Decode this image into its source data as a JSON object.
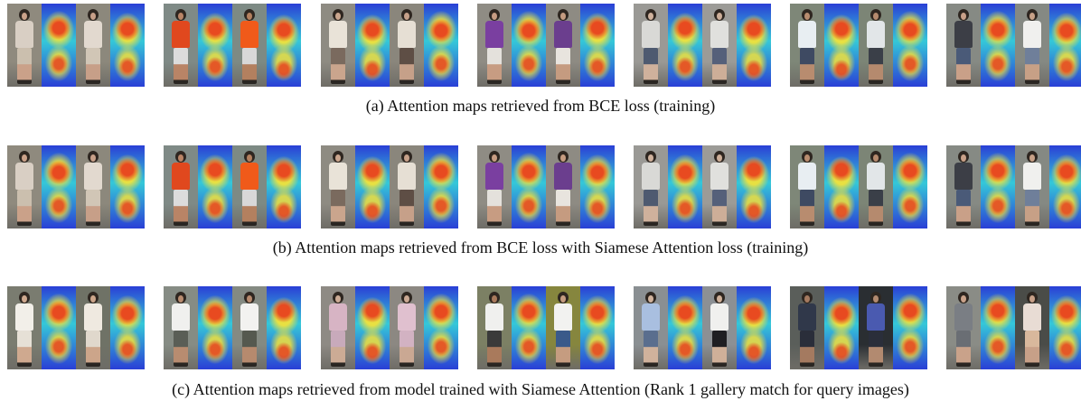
{
  "captions": {
    "a": "(a) Attention maps retrieved from BCE loss (training)",
    "b": "(b) Attention maps retrieved from BCE loss with Siamese Attention loss (training)",
    "c": "(c) Attention maps retrieved from model trained with Siamese Attention (Rank 1 gallery match for query images)"
  },
  "colors": {
    "heat_low": "#2a3fd6",
    "heat_mid": "#35c8d8",
    "heat_warm": "#f2e23a",
    "heat_hot": "#e83a1c",
    "caption_text": "#111111"
  },
  "rows": [
    {
      "id": "a",
      "groups": [
        {
          "photos": [
            {
              "bg": "#8f8a7e",
              "top": "#d9cfc4",
              "bottom": "#cbbfae",
              "skin": "#caa189"
            },
            {
              "bg": "#8c887c",
              "top": "#e2d9cf",
              "bottom": "#d1c6b6",
              "skin": "#c79f88"
            }
          ]
        },
        {
          "photos": [
            {
              "bg": "#7f8a86",
              "top": "#e0481e",
              "bottom": "#dcdcdc",
              "skin": "#b98466"
            },
            {
              "bg": "#7d8a84",
              "top": "#f05a1a",
              "bottom": "#d8d8d8",
              "skin": "#b3805f"
            }
          ]
        },
        {
          "photos": [
            {
              "bg": "#8e8b82",
              "top": "#e9e3d8",
              "bottom": "#7a6a5e",
              "skin": "#caa58d"
            },
            {
              "bg": "#8a867c",
              "top": "#e6dfd4",
              "bottom": "#5e4e45",
              "skin": "#c6a089"
            }
          ]
        },
        {
          "photos": [
            {
              "bg": "#8f8c84",
              "top": "#7a3fa0",
              "bottom": "#e4e1dc",
              "skin": "#c79c82"
            },
            {
              "bg": "#8e8b83",
              "top": "#6b3e8e",
              "bottom": "#e8e4de",
              "skin": "#c59b80"
            }
          ]
        },
        {
          "photos": [
            {
              "bg": "#9a9995",
              "top": "#d9d9d6",
              "bottom": "#4e5a70",
              "skin": "#cfb19c"
            },
            {
              "bg": "#9c9b97",
              "top": "#e0e0dd",
              "bottom": "#55607a",
              "skin": "#cdae98"
            }
          ]
        },
        {
          "photos": [
            {
              "bg": "#7e8778",
              "top": "#e8eef2",
              "bottom": "#3e4a62",
              "skin": "#b88c6f"
            },
            {
              "bg": "#7c8576",
              "top": "#e2e6e8",
              "bottom": "#3a3f48",
              "skin": "#b58a6e"
            }
          ]
        },
        {
          "photos": [
            {
              "bg": "#868a84",
              "top": "#3c3e46",
              "bottom": "#4a5a78",
              "skin": "#c9a088"
            },
            {
              "bg": "#858983",
              "top": "#f0f0ee",
              "bottom": "#6f7f9a",
              "skin": "#c7a086"
            }
          ]
        }
      ]
    },
    {
      "id": "b",
      "groups": [
        {
          "photos": [
            {
              "bg": "#8f8a7e",
              "top": "#d9cfc4",
              "bottom": "#cbbfae",
              "skin": "#caa189"
            },
            {
              "bg": "#8c887c",
              "top": "#e2d9cf",
              "bottom": "#d1c6b6",
              "skin": "#c79f88"
            }
          ]
        },
        {
          "photos": [
            {
              "bg": "#7f8a86",
              "top": "#e0481e",
              "bottom": "#dcdcdc",
              "skin": "#b98466"
            },
            {
              "bg": "#7d8a84",
              "top": "#f05a1a",
              "bottom": "#d8d8d8",
              "skin": "#b3805f"
            }
          ]
        },
        {
          "photos": [
            {
              "bg": "#8e8b82",
              "top": "#e9e3d8",
              "bottom": "#7a6a5e",
              "skin": "#caa58d"
            },
            {
              "bg": "#8a867c",
              "top": "#e6dfd4",
              "bottom": "#5e4e45",
              "skin": "#c6a089"
            }
          ]
        },
        {
          "photos": [
            {
              "bg": "#8f8c84",
              "top": "#7a3fa0",
              "bottom": "#e4e1dc",
              "skin": "#c79c82"
            },
            {
              "bg": "#8e8b83",
              "top": "#6b3e8e",
              "bottom": "#e8e4de",
              "skin": "#c59b80"
            }
          ]
        },
        {
          "photos": [
            {
              "bg": "#9a9995",
              "top": "#d9d9d6",
              "bottom": "#4e5a70",
              "skin": "#cfb19c"
            },
            {
              "bg": "#9c9b97",
              "top": "#e0e0dd",
              "bottom": "#55607a",
              "skin": "#cdae98"
            }
          ]
        },
        {
          "photos": [
            {
              "bg": "#7e8778",
              "top": "#e8eef2",
              "bottom": "#3e4a62",
              "skin": "#b88c6f"
            },
            {
              "bg": "#7c8576",
              "top": "#e2e6e8",
              "bottom": "#3a3f48",
              "skin": "#b58a6e"
            }
          ]
        },
        {
          "photos": [
            {
              "bg": "#868a84",
              "top": "#3c3e46",
              "bottom": "#4a5a78",
              "skin": "#c9a088"
            },
            {
              "bg": "#858983",
              "top": "#f0f0ee",
              "bottom": "#6f7f9a",
              "skin": "#c7a086"
            }
          ]
        }
      ]
    },
    {
      "id": "c",
      "groups": [
        {
          "photos": [
            {
              "bg": "#7a7c70",
              "top": "#f2efe9",
              "bottom": "#e6e0d6",
              "skin": "#cfa98f"
            },
            {
              "bg": "#6f7266",
              "top": "#efe9e0",
              "bottom": "#e0d8cc",
              "skin": "#cca58a"
            }
          ]
        },
        {
          "photos": [
            {
              "bg": "#868c84",
              "top": "#f0f0ee",
              "bottom": "#5a5e56",
              "skin": "#b88c70"
            },
            {
              "bg": "#848a82",
              "top": "#f2f2f0",
              "bottom": "#55594f",
              "skin": "#b68a6e"
            }
          ]
        },
        {
          "photos": [
            {
              "bg": "#8e8a84",
              "top": "#d7b4c4",
              "bottom": "#c8aabb",
              "skin": "#ccab95"
            },
            {
              "bg": "#8c8882",
              "top": "#e0c0cf",
              "bottom": "#d2b2c2",
              "skin": "#caa893"
            }
          ]
        },
        {
          "photos": [
            {
              "bg": "#7c8064",
              "top": "#f0f0ee",
              "bottom": "#3a3a3a",
              "skin": "#a97a5c"
            },
            {
              "bg": "#86863e",
              "top": "#f2f2f0",
              "bottom": "#3a5a8a",
              "skin": "#c59c80"
            }
          ]
        },
        {
          "photos": [
            {
              "bg": "#8a8f92",
              "top": "#a9bfe0",
              "bottom": "#5a6e8e",
              "skin": "#d0b29c"
            },
            {
              "bg": "#8c9094",
              "top": "#f0f0ee",
              "bottom": "#1e1e22",
              "skin": "#cfb099"
            }
          ]
        },
        {
          "photos": [
            {
              "bg": "#5a5e5a",
              "top": "#30384a",
              "bottom": "#2a2e3a",
              "skin": "#a47a60"
            },
            {
              "bg": "#2a2e32",
              "top": "#4a5ab0",
              "bottom": "#2a2e3a",
              "skin": "#b28a70"
            }
          ]
        },
        {
          "photos": [
            {
              "bg": "#8a8c86",
              "top": "#7a7e84",
              "bottom": "#6a6e74",
              "skin": "#c9a28a"
            },
            {
              "bg": "#4a4c48",
              "top": "#e8dcd4",
              "bottom": "#d8b89c",
              "skin": "#c7a088"
            }
          ]
        }
      ]
    }
  ]
}
